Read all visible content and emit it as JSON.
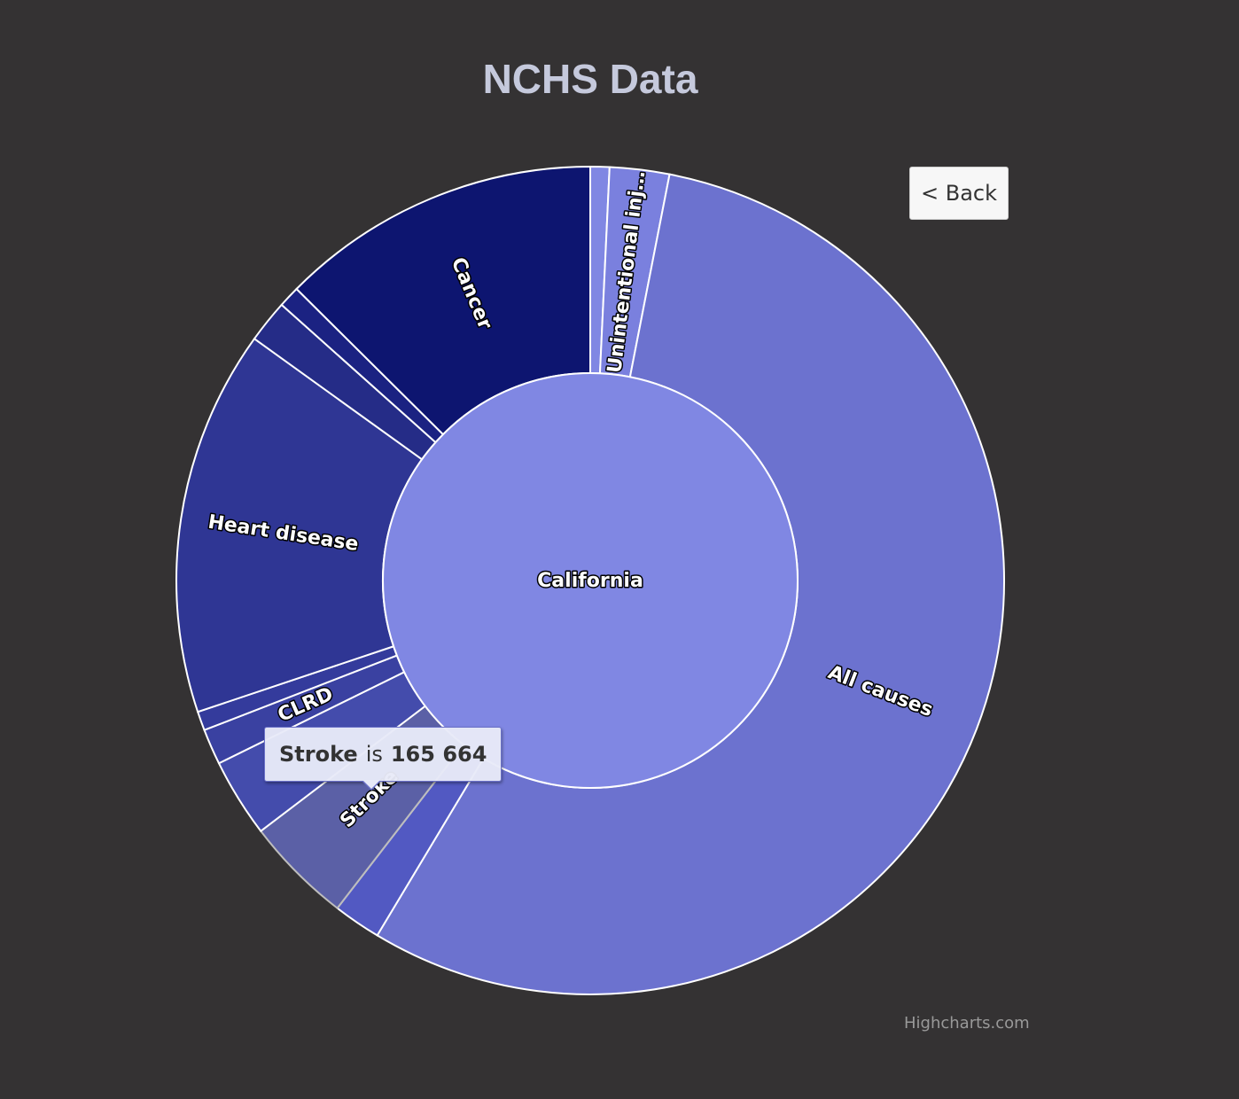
{
  "chart_data": {
    "type": "sunburst",
    "title": "NCHS Data",
    "center": {
      "name": "California",
      "color": "#8087e3"
    },
    "segments": [
      {
        "name": "",
        "value": 0.8,
        "color": "#8087e3"
      },
      {
        "name": "Unintentional inj…",
        "value": 2.5,
        "color": "#7a80de"
      },
      {
        "name": "All causes",
        "value": 59.7,
        "color": "#6c72cf"
      },
      {
        "name": "",
        "value": 2.0,
        "color": "#5259c2"
      },
      {
        "name": "Stroke",
        "value": 4.5,
        "color": "#5b60a6",
        "hovered": true
      },
      {
        "name": "",
        "value": 3.3,
        "color": "#444cac"
      },
      {
        "name": "CLRD",
        "value": 1.5,
        "color": "#3a41a1"
      },
      {
        "name": "",
        "value": 0.8,
        "color": "#343b9c"
      },
      {
        "name": "Heart disease",
        "value": 16.2,
        "color": "#2f3694"
      },
      {
        "name": "",
        "value": 1.8,
        "color": "#252c87"
      },
      {
        "name": "",
        "value": 0.9,
        "color": "#1b2282"
      },
      {
        "name": "Cancer",
        "value": 13.5,
        "color": "#0d1570"
      }
    ]
  },
  "back_button": {
    "label": "< Back"
  },
  "tooltip": {
    "name": "Stroke",
    "sep": "is",
    "value": "165 664"
  },
  "credits": "Highcharts.com"
}
